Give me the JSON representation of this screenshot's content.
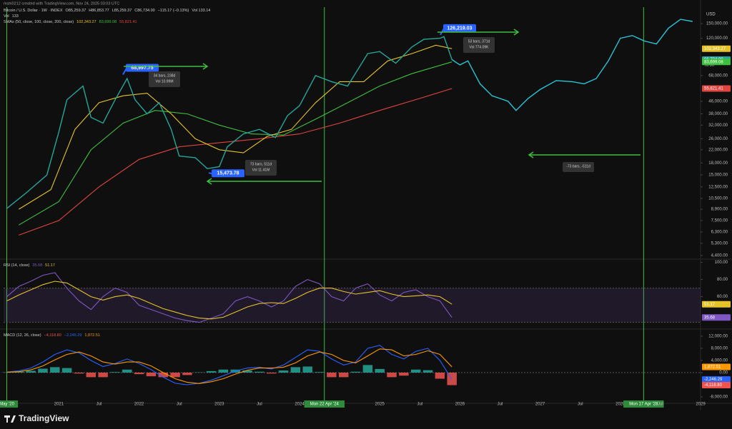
{
  "header": {
    "credit": "mshi0212 created with TradingView.com, Nov 24, 2025 03:03 UTC",
    "currency": "USD",
    "countdown": "7d 0h",
    "logo": "TradingView"
  },
  "chart_data": [
    {
      "type": "line",
      "log_scale": true,
      "legend": [
        [
          "Bitcoin / U.S. Dollar · 1W · INDEX",
          "O85,259.37",
          "H86,853.77",
          "L85,259.37",
          "C86,734.00",
          "−115.17 (−0.13%)",
          "Vol 133.14"
        ],
        [
          "Vol",
          "133"
        ],
        [
          "SMAs (50, close, 100, close, 200, close)",
          "102,343.27",
          "83,699.08",
          "55,821.41"
        ]
      ],
      "xlim": [
        2020.31,
        2029.0
      ],
      "xticks": [
        {
          "value": 2020.35,
          "label": "May '20"
        },
        2021,
        {
          "value": 2021.5,
          "label": "Jul"
        },
        2022,
        {
          "value": 2022.5,
          "label": "Jul"
        },
        2023,
        {
          "value": 2023.5,
          "label": "Jul"
        },
        2024,
        {
          "value": 2024.31,
          "label": "Mon 22 Apr '24"
        },
        2025,
        {
          "value": 2025.5,
          "label": "Jul"
        },
        2026,
        {
          "value": 2026.5,
          "label": "Jul"
        },
        2027,
        {
          "value": 2027.5,
          "label": "Jul"
        },
        2028,
        {
          "value": 2028.29,
          "label": "Mon 17 Apr '28"
        },
        {
          "value": 2028.5,
          "label": "Jul"
        },
        2029
      ],
      "ylim": [
        4213,
        192600
      ],
      "yticks": [
        {
          "value": 150000,
          "label": "150,000.00"
        },
        {
          "value": 120000,
          "label": "120,000.00"
        },
        {
          "value": 68000,
          "label": "68,000.00"
        },
        {
          "value": 46000,
          "label": "46,000.00"
        },
        {
          "value": 38000,
          "label": "38,000.00"
        },
        {
          "value": 32000,
          "label": "32,000.00"
        },
        {
          "value": 26000,
          "label": "26,000.00"
        },
        {
          "value": 22000,
          "label": "22,000.00"
        },
        {
          "value": 18000,
          "label": "18,000.00"
        },
        {
          "value": 15000,
          "label": "15,000.00"
        },
        {
          "value": 12500,
          "label": "12,500.00"
        },
        {
          "value": 10500,
          "label": "10,500.00"
        },
        {
          "value": 8900,
          "label": "8,900.00"
        },
        {
          "value": 7500,
          "label": "7,500.00"
        },
        {
          "value": 6300,
          "label": "6,300.00"
        },
        {
          "value": 5300,
          "label": "5,300.00"
        },
        {
          "value": 4400,
          "label": "4,400.00"
        }
      ],
      "series": [
        {
          "color": "#e0453f",
          "x": [
            2020.5,
            2021.0,
            2021.5,
            2022.0,
            2022.5,
            2023.0,
            2023.5,
            2024.0,
            2024.5,
            2025.0,
            2025.5,
            2025.9
          ],
          "values": [
            6000,
            7500,
            12500,
            19000,
            23000,
            24500,
            26000,
            28000,
            33000,
            40000,
            48000,
            55821.41
          ]
        },
        {
          "color": "#3fbf3f",
          "x": [
            2020.5,
            2021.0,
            2021.4,
            2021.8,
            2022.2,
            2022.6,
            2023.0,
            2023.4,
            2023.8,
            2024.2,
            2024.6,
            2025.0,
            2025.4,
            2025.9
          ],
          "values": [
            7000,
            10000,
            22000,
            33000,
            40000,
            38000,
            32000,
            28000,
            27500,
            35000,
            45000,
            58000,
            70000,
            83699.08
          ]
        },
        {
          "color": "#e6c229",
          "x": [
            2020.5,
            2020.9,
            2021.2,
            2021.5,
            2021.8,
            2022.1,
            2022.4,
            2022.7,
            2023.0,
            2023.3,
            2023.6,
            2023.9,
            2024.2,
            2024.5,
            2024.8,
            2025.1,
            2025.4,
            2025.7,
            2025.9
          ],
          "values": [
            8900,
            12000,
            30000,
            45000,
            50000,
            52000,
            38000,
            26000,
            22000,
            21000,
            27000,
            30000,
            45000,
            62000,
            62000,
            85000,
            95000,
            108000,
            102343.27
          ]
        },
        {
          "color": "#26a69a",
          "x": [
            2020.35,
            2020.6,
            2020.85,
            2021.0,
            2021.1,
            2021.3,
            2021.4,
            2021.55,
            2021.7,
            2021.85,
            2021.95,
            2022.1,
            2022.25,
            2022.4,
            2022.5,
            2022.7,
            2022.85,
            2023.0,
            2023.1,
            2023.3,
            2023.5,
            2023.7,
            2023.85,
            2024.0,
            2024.2,
            2024.4,
            2024.6,
            2024.85,
            2025.0,
            2025.2,
            2025.4,
            2025.55,
            2025.75,
            2025.8,
            2025.9
          ],
          "values": [
            9000,
            11500,
            15000,
            29000,
            47000,
            58000,
            36000,
            33000,
            47000,
            65000,
            47000,
            38000,
            45000,
            30000,
            20000,
            19500,
            16500,
            17000,
            23000,
            28000,
            30000,
            26500,
            37000,
            43000,
            68000,
            62000,
            58000,
            95000,
            98000,
            82000,
            105000,
            118000,
            120000,
            123000,
            86734
          ]
        },
        {
          "color": "#29c4d6",
          "x": [
            2025.9,
            2026.0,
            2026.1,
            2026.25,
            2026.4,
            2026.6,
            2026.7,
            2026.85,
            2027.0,
            2027.2,
            2027.4,
            2027.55,
            2027.7,
            2027.85,
            2028.0,
            2028.15,
            2028.3,
            2028.45,
            2028.6,
            2028.75,
            2028.9
          ],
          "values": [
            86734,
            80000,
            85000,
            60000,
            50000,
            46000,
            40000,
            48000,
            55000,
            63000,
            62000,
            60000,
            65000,
            85000,
            120000,
            125000,
            115000,
            110000,
            140000,
            160000,
            155000
          ]
        }
      ],
      "badges": [
        {
          "value": 102343.27,
          "label": "102,343.27",
          "color": "#e6c229"
        },
        {
          "value": 86734.0,
          "label": "86,734.00",
          "color": "#26a69a"
        },
        {
          "value": 83699.08,
          "label": "83,699.08",
          "color": "#3fbf3f"
        },
        {
          "value": 55821.41,
          "label": "55,821.41",
          "color": "#e0453f"
        }
      ],
      "annotations": [
        {
          "value": 68997.75,
          "label": "68,997.75"
        },
        {
          "value": 15473.78,
          "label": "15,473.78"
        },
        {
          "value": 126219.03,
          "label": "126,219.03"
        }
      ],
      "ranges": [
        [
          "34 bars, 238d",
          "Vol 10.99M"
        ],
        [
          "73 bars, 511d",
          "Vol 11.41M"
        ],
        [
          "53 bars, 371d",
          "Vol 774.09K"
        ],
        [
          "-73 bars, -511d"
        ]
      ]
    },
    {
      "type": "line",
      "legend": [
        [
          "RSI (14, close)",
          "35.68",
          "51.17"
        ]
      ],
      "ylim": [
        23,
        103
      ],
      "band": [
        30,
        70
      ],
      "yticks": [
        {
          "value": 100,
          "label": "100.00"
        },
        {
          "value": 80,
          "label": "80.00"
        },
        {
          "value": 60,
          "label": "60.00"
        }
      ],
      "x": [
        2020.35,
        2020.5,
        2020.65,
        2020.8,
        2020.95,
        2021.1,
        2021.25,
        2021.4,
        2021.55,
        2021.7,
        2021.85,
        2022.0,
        2022.15,
        2022.3,
        2022.45,
        2022.6,
        2022.75,
        2022.9,
        2023.05,
        2023.2,
        2023.35,
        2023.5,
        2023.65,
        2023.8,
        2023.95,
        2024.1,
        2024.25,
        2024.4,
        2024.55,
        2024.7,
        2024.85,
        2025.0,
        2025.15,
        2025.3,
        2025.45,
        2025.6,
        2025.75,
        2025.9
      ],
      "series": [
        {
          "color": "#7e57c2",
          "values": [
            60,
            72,
            78,
            85,
            88,
            70,
            55,
            45,
            60,
            70,
            65,
            50,
            45,
            40,
            35,
            32,
            30,
            35,
            40,
            55,
            60,
            55,
            48,
            55,
            72,
            80,
            75,
            60,
            55,
            70,
            75,
            62,
            55,
            65,
            68,
            60,
            55,
            35.68
          ]
        },
        {
          "color": "#e6c229",
          "values": [
            55,
            62,
            68,
            74,
            78,
            76,
            68,
            60,
            56,
            60,
            62,
            58,
            52,
            46,
            42,
            38,
            35,
            34,
            36,
            42,
            48,
            52,
            53,
            52,
            58,
            65,
            70,
            70,
            66,
            63,
            65,
            67,
            63,
            60,
            61,
            62,
            60,
            51.17
          ]
        }
      ],
      "badges": [
        {
          "value": 51.17,
          "label": "51.17",
          "color": "#e6c229"
        },
        {
          "value": 35.68,
          "label": "35.68",
          "color": "#7e57c2"
        }
      ]
    },
    {
      "type": "line",
      "legend": [
        [
          "MACD (12, 26, close)",
          "−4,118.80",
          "−2,246.29",
          "1,872.51"
        ]
      ],
      "ylim": [
        -10100,
        14100
      ],
      "yticks": [
        {
          "value": 12000,
          "label": "12,000.00"
        },
        {
          "value": 8000,
          "label": "8,000.00"
        },
        {
          "value": 4000,
          "label": "4,000.00"
        },
        {
          "value": 0,
          "label": "0.00"
        },
        {
          "value": -8000,
          "label": "-8,000.00"
        }
      ],
      "x": [
        2020.35,
        2020.5,
        2020.65,
        2020.8,
        2020.95,
        2021.1,
        2021.25,
        2021.4,
        2021.55,
        2021.7,
        2021.85,
        2022.0,
        2022.15,
        2022.3,
        2022.45,
        2022.6,
        2022.75,
        2022.9,
        2023.05,
        2023.2,
        2023.35,
        2023.5,
        2023.65,
        2023.8,
        2023.95,
        2024.1,
        2024.25,
        2024.4,
        2024.55,
        2024.7,
        2024.85,
        2025.0,
        2025.15,
        2025.3,
        2025.45,
        2025.6,
        2025.75,
        2025.9
      ],
      "series": [
        {
          "type": "histogram",
          "color": "#26a69a",
          "negative_color": "#ef5350",
          "values": [
            100,
            300,
            600,
            1300,
            1800,
            1500,
            -300,
            -1500,
            -1500,
            200,
            1000,
            -500,
            -1200,
            -1500,
            -1500,
            -800,
            100,
            500,
            1000,
            1000,
            700,
            300,
            -300,
            700,
            1800,
            2000,
            200,
            -1500,
            -1500,
            300,
            2500,
            1200,
            -1500,
            -1000,
            1000,
            800,
            -2000,
            -4118.8
          ]
        },
        {
          "color": "#2962ff",
          "values": [
            200,
            600,
            1500,
            3500,
            6000,
            7500,
            6500,
            4000,
            2000,
            3000,
            4500,
            3000,
            1000,
            -1500,
            -3500,
            -4000,
            -3500,
            -2500,
            -1000,
            500,
            1500,
            1800,
            1200,
            2500,
            5000,
            7500,
            7000,
            4500,
            2500,
            3500,
            8000,
            9000,
            6000,
            4500,
            7000,
            8000,
            4000,
            -2246.29
          ]
        },
        {
          "color": "#ff9800",
          "values": [
            100,
            300,
            900,
            2200,
            4200,
            6000,
            6800,
            5500,
            3500,
            2800,
            3500,
            3500,
            2200,
            0,
            -2000,
            -3200,
            -3600,
            -3000,
            -2000,
            -500,
            800,
            1500,
            1500,
            1800,
            3200,
            5500,
            6800,
            6000,
            4000,
            3200,
            5500,
            7800,
            7500,
            5500,
            6000,
            7200,
            6000,
            1872.51
          ]
        }
      ],
      "badges": [
        {
          "value": 1872.51,
          "label": "1,872.51",
          "color": "#ff9800"
        },
        {
          "value": -2246.29,
          "label": "-2,246.29",
          "color": "#2962ff"
        },
        {
          "value": -4118.8,
          "label": "-4,118.80",
          "color": "#ef5350"
        }
      ]
    }
  ]
}
